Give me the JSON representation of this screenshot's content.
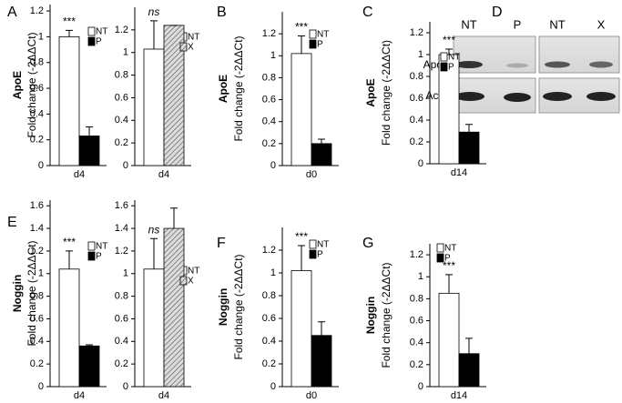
{
  "chart_data": [
    {
      "type": "bar",
      "panel": "A",
      "gene": "ApoE",
      "ylabel": "Fold change (-2ΔΔCt)",
      "categories": [
        "d4"
      ],
      "annotation": "***",
      "series": [
        {
          "name": "NT",
          "color": "#ffffff",
          "values": [
            1.0
          ],
          "errors": [
            0.05
          ]
        },
        {
          "name": "P",
          "color": "#000000",
          "values": [
            0.23
          ],
          "errors": [
            0.07
          ]
        }
      ],
      "ylim": [
        0,
        1.25
      ],
      "yticks": [
        0,
        0.2,
        0.4,
        0.6,
        0.8,
        1,
        1.2
      ]
    },
    {
      "type": "bar",
      "categories": [
        "d4"
      ],
      "annotation": "ns",
      "series": [
        {
          "name": "NT",
          "color": "#ffffff",
          "values": [
            1.03
          ],
          "errors": [
            0.25
          ]
        },
        {
          "name": "X",
          "color": "hatch",
          "values": [
            1.24
          ],
          "errors": [
            0
          ]
        }
      ],
      "ylim": [
        0,
        1.4
      ],
      "yticks": [
        0,
        0.2,
        0.4,
        0.6,
        0.8,
        1,
        1.2
      ]
    },
    {
      "type": "bar",
      "panel": "B",
      "gene": "ApoE",
      "ylabel": "Fold change (-2ΔΔCt)",
      "categories": [
        "d0"
      ],
      "annotation": "***",
      "series": [
        {
          "name": "NT",
          "color": "#ffffff",
          "values": [
            1.02
          ],
          "errors": [
            0.16
          ]
        },
        {
          "name": "P",
          "color": "#000000",
          "values": [
            0.2
          ],
          "errors": [
            0.04
          ]
        }
      ],
      "ylim": [
        0,
        1.4
      ],
      "yticks": [
        0,
        0.2,
        0.4,
        0.6,
        0.8,
        1,
        1.2
      ]
    },
    {
      "type": "bar",
      "panel": "C",
      "gene": "ApoE",
      "ylabel": "Fold change (-2ΔΔCt)",
      "categories": [
        "d14"
      ],
      "annotation": "***",
      "series": [
        {
          "name": "NT",
          "color": "#ffffff",
          "values": [
            1.0
          ],
          "errors": [
            0.05
          ]
        },
        {
          "name": "P",
          "color": "#000000",
          "values": [
            0.29
          ],
          "errors": [
            0.07
          ]
        }
      ],
      "ylim": [
        0,
        1.3
      ],
      "yticks": [
        0,
        0.2,
        0.4,
        0.6,
        0.8,
        1,
        1.2
      ]
    },
    {
      "type": "bar",
      "panel": "E",
      "gene": "Noggin",
      "ylabel": "Fold change (-2ΔΔCt)",
      "categories": [
        "d4"
      ],
      "annotation": "***",
      "series": [
        {
          "name": "NT",
          "color": "#ffffff",
          "values": [
            1.04
          ],
          "errors": [
            0.16
          ]
        },
        {
          "name": "P",
          "color": "#000000",
          "values": [
            0.36
          ],
          "errors": [
            0.01
          ]
        }
      ],
      "ylim": [
        0,
        1.65
      ],
      "yticks": [
        0,
        0.2,
        0.4,
        0.6,
        0.8,
        1,
        1.2,
        1.4,
        1.6
      ]
    },
    {
      "type": "bar",
      "categories": [
        "d4"
      ],
      "annotation": "ns",
      "series": [
        {
          "name": "NT",
          "color": "#ffffff",
          "values": [
            1.04
          ],
          "errors": [
            0.27
          ]
        },
        {
          "name": "X",
          "color": "hatch",
          "values": [
            1.4
          ],
          "errors": [
            0.18
          ]
        }
      ],
      "ylim": [
        0,
        1.65
      ],
      "yticks": [
        0,
        0.2,
        0.4,
        0.6,
        0.8,
        1,
        1.2,
        1.4,
        1.6
      ]
    },
    {
      "type": "bar",
      "panel": "F",
      "gene": "Noggin",
      "ylabel": "Fold change (-2ΔΔCt)",
      "categories": [
        "d0"
      ],
      "annotation": "***",
      "series": [
        {
          "name": "NT",
          "color": "#ffffff",
          "values": [
            1.02
          ],
          "errors": [
            0.22
          ]
        },
        {
          "name": "P",
          "color": "#000000",
          "values": [
            0.45
          ],
          "errors": [
            0.12
          ]
        }
      ],
      "ylim": [
        0,
        1.4
      ],
      "yticks": [
        0,
        0.2,
        0.4,
        0.6,
        0.8,
        1,
        1.2
      ]
    },
    {
      "type": "bar",
      "panel": "G",
      "gene": "Noggin",
      "ylabel": "Fold change (-2ΔΔCt)",
      "categories": [
        "d14"
      ],
      "annotation": "***",
      "series": [
        {
          "name": "NT",
          "color": "#ffffff",
          "values": [
            0.85
          ],
          "errors": [
            0.17
          ]
        },
        {
          "name": "P",
          "color": "#000000",
          "values": [
            0.3
          ],
          "errors": [
            0.14
          ]
        }
      ],
      "ylim": [
        0,
        1.3
      ],
      "yticks": [
        0,
        0.2,
        0.4,
        0.6,
        0.8,
        1,
        1.2
      ]
    }
  ],
  "blot": {
    "panel": "D",
    "lanes": [
      "NT",
      "P",
      "NT",
      "X"
    ],
    "rows": [
      "ApoE",
      "Actin"
    ]
  }
}
